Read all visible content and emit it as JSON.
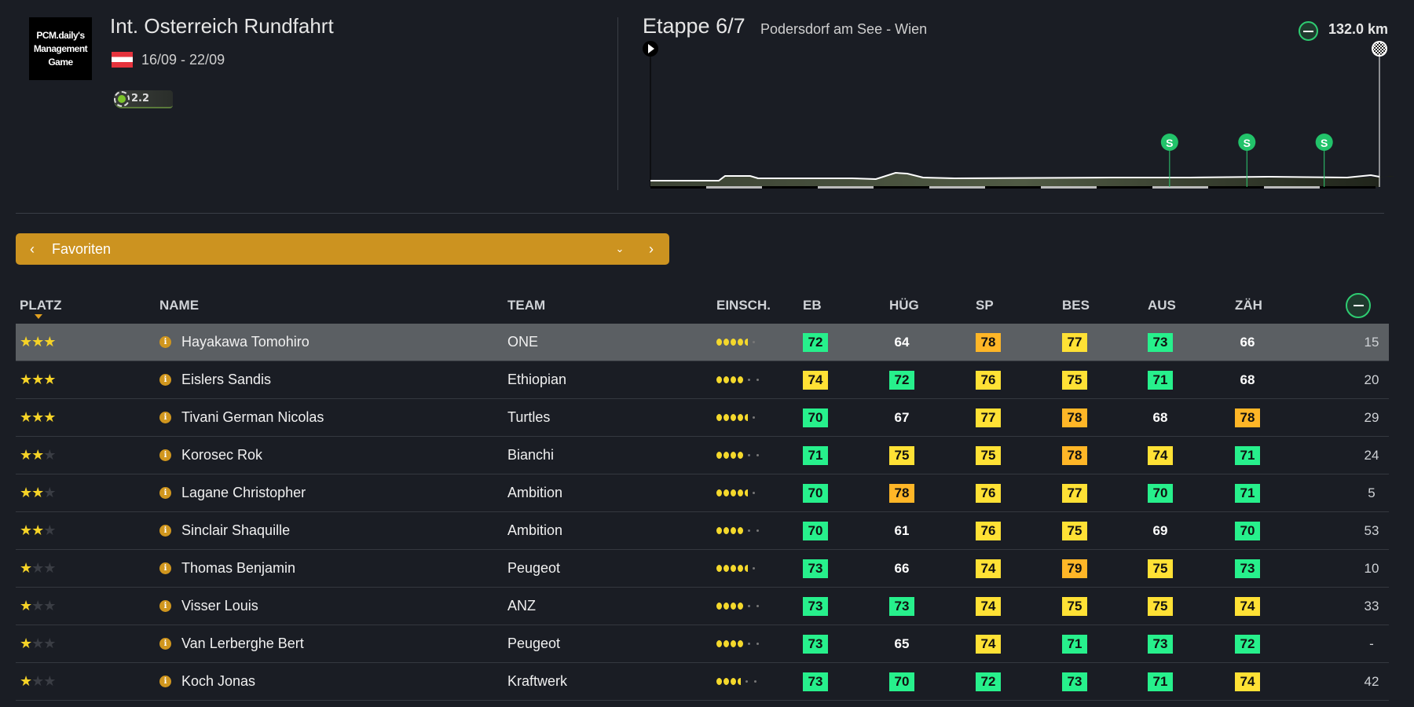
{
  "race": {
    "logo_text": "PCM.daily's Management Game",
    "title": "Int. Osterreich Rundfahrt",
    "dates": "16/09 - 22/09",
    "category": "2.2"
  },
  "stage": {
    "label": "Etappe 6/7",
    "route": "Podersdorf am See - Wien",
    "distance": "132.0 km",
    "sprint_marker": "S",
    "sprints_km": [
      94,
      108,
      122
    ]
  },
  "filter": {
    "label": "Favoriten"
  },
  "columns": {
    "platz": "PLATZ",
    "name": "NAME",
    "team": "TEAM",
    "einsch": "EINSCH.",
    "eb": "EB",
    "hug": "HÜG",
    "sp": "SP",
    "bes": "BES",
    "aus": "AUS",
    "zah": "ZÄH"
  },
  "riders": [
    {
      "stars": 3,
      "name": "Hayakawa Tomohiro",
      "team": "ONE",
      "einsch": 4.5,
      "eb": "72",
      "hug": "64",
      "sp": "78",
      "bes": "77",
      "aus": "73",
      "zah": "66",
      "last": "15"
    },
    {
      "stars": 3,
      "name": "Eislers Sandis",
      "team": "Ethiopian",
      "einsch": 4,
      "eb": "74",
      "hug": "72",
      "sp": "76",
      "bes": "75",
      "aus": "71",
      "zah": "68",
      "last": "20"
    },
    {
      "stars": 3,
      "name": "Tivani German Nicolas",
      "team": "Turtles",
      "einsch": 4.5,
      "eb": "70",
      "hug": "67",
      "sp": "77",
      "bes": "78",
      "aus": "68",
      "zah": "78",
      "last": "29"
    },
    {
      "stars": 2,
      "name": "Korosec Rok",
      "team": "Bianchi",
      "einsch": 4,
      "eb": "71",
      "hug": "75",
      "sp": "75",
      "bes": "78",
      "aus": "74",
      "zah": "71",
      "last": "24"
    },
    {
      "stars": 2,
      "name": "Lagane Christopher",
      "team": "Ambition",
      "einsch": 4.5,
      "eb": "70",
      "hug": "78",
      "sp": "76",
      "bes": "77",
      "aus": "70",
      "zah": "71",
      "last": "5"
    },
    {
      "stars": 2,
      "name": "Sinclair Shaquille",
      "team": "Ambition",
      "einsch": 4,
      "eb": "70",
      "hug": "61",
      "sp": "76",
      "bes": "75",
      "aus": "69",
      "zah": "70",
      "last": "53"
    },
    {
      "stars": 1,
      "name": "Thomas Benjamin",
      "team": "Peugeot",
      "einsch": 4.5,
      "eb": "73",
      "hug": "66",
      "sp": "74",
      "bes": "79",
      "aus": "75",
      "zah": "73",
      "last": "10"
    },
    {
      "stars": 1,
      "name": "Visser Louis",
      "team": "ANZ",
      "einsch": 4,
      "eb": "73",
      "hug": "73",
      "sp": "74",
      "bes": "75",
      "aus": "75",
      "zah": "74",
      "last": "33"
    },
    {
      "stars": 1,
      "name": "Van Lerberghe Bert",
      "team": "Peugeot",
      "einsch": 4,
      "eb": "73",
      "hug": "65",
      "sp": "74",
      "bes": "71",
      "aus": "73",
      "zah": "72",
      "last": "-"
    },
    {
      "stars": 1,
      "name": "Koch Jonas",
      "team": "Kraftwerk",
      "einsch": 3.5,
      "eb": "73",
      "hug": "70",
      "sp": "72",
      "bes": "73",
      "aus": "71",
      "zah": "74",
      "last": "42"
    }
  ],
  "colors": {
    "accent": "#cc9320",
    "green": "#27f08c",
    "yellow": "#ffe135",
    "orange": "#ffb627",
    "selected_row": "#5b5f63"
  }
}
